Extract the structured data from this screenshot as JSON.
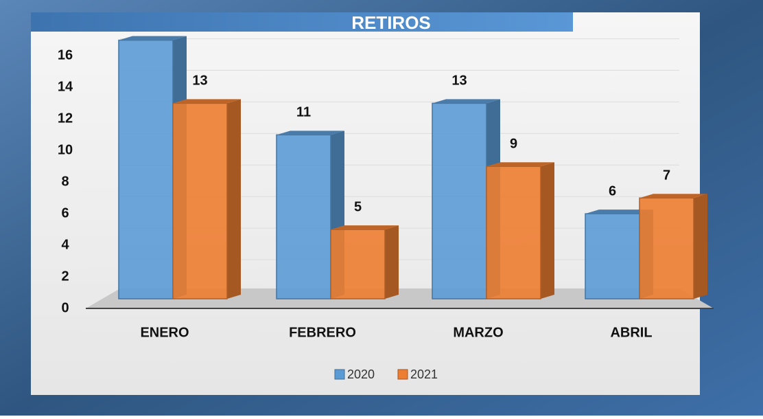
{
  "chart_data": {
    "type": "bar3d",
    "title": "RETIROS",
    "categories": [
      "ENERO",
      "FEBRERO",
      "MARZO",
      "ABRIL"
    ],
    "series": [
      {
        "name": "2020",
        "color": "#5b9bd5",
        "values": [
          17,
          11,
          13,
          6
        ],
        "value_labels": [
          null,
          "11",
          "13",
          "6"
        ]
      },
      {
        "name": "2021",
        "color": "#ed7d31",
        "values": [
          13,
          5,
          9,
          7
        ],
        "value_labels": [
          "13",
          "5",
          "9",
          "7"
        ]
      }
    ],
    "ylim": [
      0,
      17.5
    ],
    "yticks": [
      0,
      2,
      4,
      6,
      8,
      10,
      12,
      14,
      16
    ],
    "grid": true,
    "legend": "bottom"
  }
}
